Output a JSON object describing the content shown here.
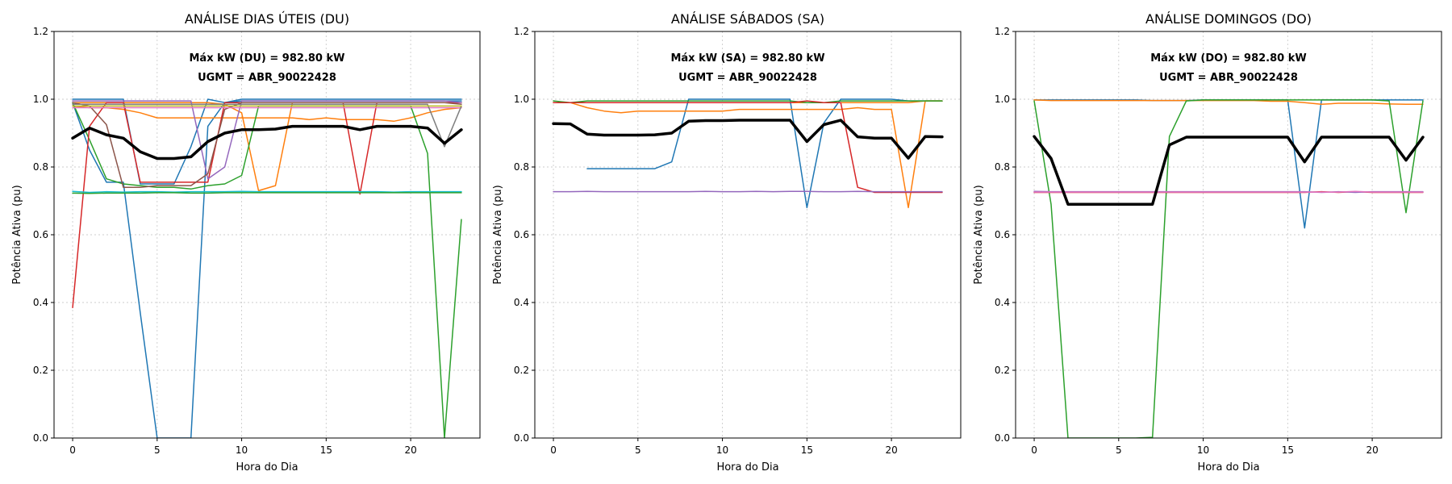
{
  "colors": {
    "mean": "#000000",
    "palette": [
      "#1f77b4",
      "#ff7f0e",
      "#2ca02c",
      "#d62728",
      "#9467bd",
      "#8c564b",
      "#e377c2",
      "#7f7f7f",
      "#bcbd22",
      "#17becf"
    ]
  },
  "chart_data": [
    {
      "type": "line",
      "title": "ANÁLISE DIAS ÚTEIS (DU)",
      "xlabel": "Hora do Dia",
      "ylabel": "Potência Ativa (pu)",
      "xlim": [
        -1.1,
        24.1
      ],
      "ylim": [
        0,
        1.2
      ],
      "xticks": [
        0,
        5,
        10,
        15,
        20
      ],
      "yticks": [
        0.0,
        0.2,
        0.4,
        0.6,
        0.8,
        1.0,
        1.2
      ],
      "grid": true,
      "annotations": [
        "Máx kW (DU) = 982.80 kW",
        "UGMT = ABR_90022428"
      ],
      "x": [
        0,
        1,
        2,
        3,
        4,
        5,
        6,
        7,
        8,
        9,
        10,
        11,
        12,
        13,
        14,
        15,
        16,
        17,
        18,
        19,
        20,
        21,
        22,
        23
      ],
      "series": [
        {
          "color": "#1f77b4",
          "values": [
            0.99,
            0.85,
            0.755,
            0.755,
            0.37,
            0.0,
            0.0,
            0.0,
            0.92,
            0.99,
            0.995,
            0.995,
            0.995,
            0.995,
            0.995,
            0.995,
            0.995,
            0.995,
            0.995,
            0.995,
            0.995,
            0.995,
            0.995,
            0.995
          ]
        },
        {
          "color": "#1f77b4",
          "values": [
            1.0,
            1.0,
            1.0,
            1.0,
            0.75,
            0.75,
            0.75,
            0.86,
            1.0,
            0.99,
            1.0,
            1.0,
            1.0,
            1.0,
            1.0,
            1.0,
            1.0,
            1.0,
            1.0,
            1.0,
            1.0,
            1.0,
            1.0,
            1.0
          ]
        },
        {
          "color": "#ff7f0e",
          "values": [
            0.98,
            0.975,
            0.975,
            0.97,
            0.96,
            0.945,
            0.945,
            0.945,
            0.945,
            0.945,
            0.945,
            0.945,
            0.945,
            0.945,
            0.94,
            0.945,
            0.94,
            0.94,
            0.94,
            0.935,
            0.945,
            0.96,
            0.97,
            0.975
          ]
        },
        {
          "color": "#ff7f0e",
          "values": [
            0.99,
            0.99,
            0.99,
            0.99,
            0.99,
            0.99,
            0.99,
            0.99,
            0.99,
            0.985,
            0.96,
            0.73,
            0.745,
            0.99,
            0.99,
            0.99,
            0.99,
            0.99,
            0.99,
            0.99,
            0.99,
            0.99,
            0.99,
            0.99
          ]
        },
        {
          "color": "#2ca02c",
          "values": [
            0.99,
            0.88,
            0.765,
            0.75,
            0.745,
            0.74,
            0.74,
            0.735,
            0.745,
            0.75,
            0.775,
            0.98,
            0.98,
            0.98,
            0.98,
            0.98,
            0.98,
            0.98,
            0.98,
            0.98,
            0.98,
            0.84,
            0.0,
            0.645
          ]
        },
        {
          "color": "#d62728",
          "values": [
            0.385,
            0.92,
            0.99,
            0.99,
            0.755,
            0.755,
            0.755,
            0.755,
            0.755,
            0.99,
            0.99,
            0.99,
            0.99,
            0.99,
            0.99,
            0.99,
            0.99,
            0.72,
            0.99,
            0.99,
            0.99,
            0.99,
            0.99,
            0.99
          ]
        },
        {
          "color": "#9467bd",
          "values": [
            0.995,
            0.995,
            0.995,
            0.995,
            0.995,
            0.995,
            0.995,
            0.995,
            0.765,
            0.8,
            0.995,
            0.995,
            0.995,
            0.995,
            0.995,
            0.995,
            0.995,
            0.995,
            0.995,
            0.995,
            0.995,
            0.995,
            0.995,
            0.99
          ]
        },
        {
          "color": "#8c564b",
          "values": [
            0.99,
            0.98,
            0.925,
            0.74,
            0.74,
            0.745,
            0.745,
            0.745,
            0.78,
            0.97,
            0.99,
            0.99,
            0.99,
            0.99,
            0.99,
            0.99,
            0.99,
            0.99,
            0.99,
            0.99,
            0.99,
            0.99,
            0.99,
            0.985
          ]
        },
        {
          "color": "#e377c2",
          "values": [
            0.975,
            0.975,
            0.975,
            0.975,
            0.975,
            0.975,
            0.975,
            0.975,
            0.975,
            0.975,
            0.975,
            0.975,
            0.975,
            0.975,
            0.975,
            0.975,
            0.975,
            0.975,
            0.975,
            0.975,
            0.975,
            0.975,
            0.975,
            0.975
          ]
        },
        {
          "color": "#7f7f7f",
          "values": [
            0.985,
            0.985,
            0.985,
            0.985,
            0.985,
            0.985,
            0.985,
            0.985,
            0.985,
            0.985,
            0.985,
            0.985,
            0.985,
            0.985,
            0.985,
            0.985,
            0.985,
            0.985,
            0.985,
            0.985,
            0.985,
            0.985,
            0.86,
            0.98
          ]
        },
        {
          "color": "#bcbd22",
          "values": [
            0.98,
            0.98,
            0.98,
            0.98,
            0.98,
            0.98,
            0.98,
            0.98,
            0.98,
            0.98,
            0.98,
            0.98,
            0.98,
            0.98,
            0.98,
            0.98,
            0.98,
            0.98,
            0.98,
            0.98,
            0.98,
            0.98,
            0.98,
            0.98
          ]
        },
        {
          "color": "#17becf",
          "values": [
            0.728,
            0.725,
            0.727,
            0.726,
            0.727,
            0.727,
            0.726,
            0.727,
            0.727,
            0.727,
            0.728,
            0.727,
            0.727,
            0.727,
            0.727,
            0.727,
            0.727,
            0.727,
            0.727,
            0.726,
            0.727,
            0.727,
            0.727,
            0.727
          ]
        },
        {
          "color": "#2ca02c",
          "values": [
            0.723,
            0.722,
            0.723,
            0.723,
            0.723,
            0.724,
            0.724,
            0.723,
            0.723,
            0.724,
            0.724,
            0.724,
            0.724,
            0.724,
            0.724,
            0.724,
            0.724,
            0.724,
            0.724,
            0.724,
            0.724,
            0.724,
            0.724,
            0.724
          ]
        },
        {
          "color": "#000000",
          "values": [
            0.885,
            0.915,
            0.895,
            0.885,
            0.845,
            0.825,
            0.825,
            0.83,
            0.875,
            0.9,
            0.91,
            0.91,
            0.912,
            0.92,
            0.92,
            0.92,
            0.92,
            0.91,
            0.92,
            0.92,
            0.92,
            0.915,
            0.87,
            0.91
          ],
          "width": 3.5,
          "z": "top"
        }
      ]
    },
    {
      "type": "line",
      "title": "ANÁLISE SÁBADOS (SA)",
      "xlabel": "Hora do Dia",
      "ylabel": "Potência Ativa (pu)",
      "xlim": [
        -1.1,
        24.1
      ],
      "ylim": [
        0,
        1.2
      ],
      "xticks": [
        0,
        5,
        10,
        15,
        20
      ],
      "yticks": [
        0.0,
        0.2,
        0.4,
        0.6,
        0.8,
        1.0,
        1.2
      ],
      "grid": true,
      "annotations": [
        "Máx kW (SA) = 982.80 kW",
        "UGMT = ABR_90022428"
      ],
      "x": [
        0,
        1,
        2,
        3,
        4,
        5,
        6,
        7,
        8,
        9,
        10,
        11,
        12,
        13,
        14,
        15,
        16,
        17,
        18,
        19,
        20,
        21,
        22,
        23
      ],
      "series": [
        {
          "color": "#1f77b4",
          "values": [
            null,
            null,
            0.795,
            0.795,
            0.795,
            0.795,
            0.795,
            0.815,
            1.0,
            1.0,
            1.0,
            1.0,
            1.0,
            1.0,
            1.0,
            0.68,
            0.93,
            1.0,
            1.0,
            1.0,
            1.0,
            0.995,
            0.995,
            0.995
          ]
        },
        {
          "color": "#ff7f0e",
          "values": [
            0.99,
            0.99,
            0.975,
            0.965,
            0.96,
            0.965,
            0.965,
            0.965,
            0.965,
            0.965,
            0.965,
            0.97,
            0.97,
            0.97,
            0.97,
            0.97,
            0.97,
            0.97,
            0.975,
            0.97,
            0.97,
            0.68,
            0.995,
            0.995
          ]
        },
        {
          "color": "#ff7f0e",
          "values": [
            0.99,
            0.99,
            0.99,
            0.99,
            0.99,
            0.99,
            0.99,
            0.99,
            0.99,
            0.99,
            0.99,
            0.99,
            0.99,
            0.99,
            0.99,
            0.99,
            0.99,
            0.99,
            0.99,
            0.99,
            0.99,
            0.99,
            0.995,
            0.995
          ]
        },
        {
          "color": "#2ca02c",
          "values": [
            0.995,
            0.99,
            0.995,
            0.995,
            0.995,
            0.995,
            0.995,
            0.995,
            0.995,
            0.995,
            0.995,
            0.995,
            0.995,
            0.995,
            0.995,
            0.99,
            0.99,
            0.995,
            0.995,
            0.995,
            0.995,
            0.995,
            0.995,
            0.995
          ]
        },
        {
          "color": "#d62728",
          "values": [
            0.99,
            0.99,
            0.99,
            0.99,
            0.99,
            0.99,
            0.99,
            0.99,
            0.99,
            0.99,
            0.99,
            0.99,
            0.99,
            0.99,
            0.99,
            0.995,
            0.99,
            0.99,
            0.74,
            0.725,
            0.725,
            0.725,
            0.725,
            0.725
          ]
        },
        {
          "color": "#9467bd",
          "values": [
            0.727,
            0.727,
            0.728,
            0.727,
            0.727,
            0.727,
            0.727,
            0.727,
            0.727,
            0.728,
            0.727,
            0.727,
            0.728,
            0.727,
            0.728,
            0.728,
            0.727,
            0.727,
            0.728,
            0.727,
            0.727,
            0.727,
            0.727,
            0.727
          ]
        },
        {
          "color": "#000000",
          "values": [
            0.928,
            0.927,
            0.897,
            0.894,
            0.894,
            0.894,
            0.895,
            0.9,
            0.935,
            0.937,
            0.937,
            0.938,
            0.938,
            0.938,
            0.938,
            0.875,
            0.925,
            0.938,
            0.889,
            0.885,
            0.885,
            0.826,
            0.89,
            0.889
          ],
          "width": 3.5,
          "z": "top"
        }
      ]
    },
    {
      "type": "line",
      "title": "ANÁLISE DOMINGOS (DO)",
      "xlabel": "Hora do Dia",
      "ylabel": "Potência Ativa (pu)",
      "xlim": [
        -1.1,
        24.1
      ],
      "ylim": [
        0,
        1.2
      ],
      "xticks": [
        0,
        5,
        10,
        15,
        20
      ],
      "yticks": [
        0.0,
        0.2,
        0.4,
        0.6,
        0.8,
        1.0,
        1.2
      ],
      "grid": true,
      "annotations": [
        "Máx kW (DO) = 982.80 kW",
        "UGMT = ABR_90022428"
      ],
      "x": [
        0,
        1,
        2,
        3,
        4,
        5,
        6,
        7,
        8,
        9,
        10,
        11,
        12,
        13,
        14,
        15,
        16,
        17,
        18,
        19,
        20,
        21,
        22,
        23
      ],
      "series": [
        {
          "color": "#1f77b4",
          "values": [
            0.998,
            0.998,
            0.998,
            0.998,
            0.998,
            0.998,
            0.998,
            0.996,
            0.996,
            0.996,
            0.998,
            0.998,
            0.998,
            0.998,
            0.998,
            0.998,
            0.62,
            0.998,
            0.998,
            0.998,
            0.998,
            0.998,
            0.998,
            0.998
          ]
        },
        {
          "color": "#ff7f0e",
          "values": [
            0.998,
            0.996,
            0.996,
            0.996,
            0.996,
            0.996,
            0.996,
            0.996,
            0.996,
            0.996,
            0.996,
            0.996,
            0.996,
            0.996,
            0.994,
            0.994,
            0.99,
            0.985,
            0.988,
            0.988,
            0.988,
            0.986,
            0.985,
            0.985
          ]
        },
        {
          "color": "#2ca02c",
          "values": [
            0.995,
            0.69,
            0.0,
            0.0,
            0.0,
            0.0,
            0.0,
            0.002,
            0.89,
            0.995,
            0.998,
            0.998,
            0.998,
            0.998,
            0.998,
            0.998,
            0.998,
            0.998,
            0.998,
            0.998,
            0.998,
            0.995,
            0.665,
            0.995
          ]
        },
        {
          "color": "#d62728",
          "values": [
            0.725,
            0.725,
            0.725,
            0.725,
            0.725,
            0.725,
            0.725,
            0.725,
            0.725,
            0.725,
            0.725,
            0.725,
            0.725,
            0.725,
            0.725,
            0.725,
            0.725,
            0.727,
            0.725,
            0.727,
            0.725,
            0.725,
            0.725,
            0.725
          ]
        },
        {
          "color": "#9467bd",
          "values": [
            0.728,
            0.727,
            0.727,
            0.727,
            0.727,
            0.727,
            0.727,
            0.727,
            0.727,
            0.727,
            0.727,
            0.727,
            0.727,
            0.727,
            0.727,
            0.727,
            0.727,
            0.725,
            0.727,
            0.725,
            0.727,
            0.727,
            0.727,
            0.727
          ]
        },
        {
          "color": "#e377c2",
          "values": [
            0.726,
            0.726,
            0.726,
            0.726,
            0.726,
            0.726,
            0.726,
            0.726,
            0.726,
            0.726,
            0.726,
            0.726,
            0.726,
            0.726,
            0.726,
            0.726,
            0.726,
            0.726,
            0.726,
            0.728,
            0.726,
            0.726,
            0.726,
            0.726
          ]
        },
        {
          "color": "#000000",
          "values": [
            0.89,
            0.825,
            0.69,
            0.69,
            0.69,
            0.69,
            0.69,
            0.69,
            0.865,
            0.888,
            0.888,
            0.888,
            0.888,
            0.888,
            0.888,
            0.888,
            0.815,
            0.888,
            0.888,
            0.888,
            0.888,
            0.888,
            0.82,
            0.888
          ],
          "width": 3.5,
          "z": "top"
        }
      ]
    }
  ]
}
